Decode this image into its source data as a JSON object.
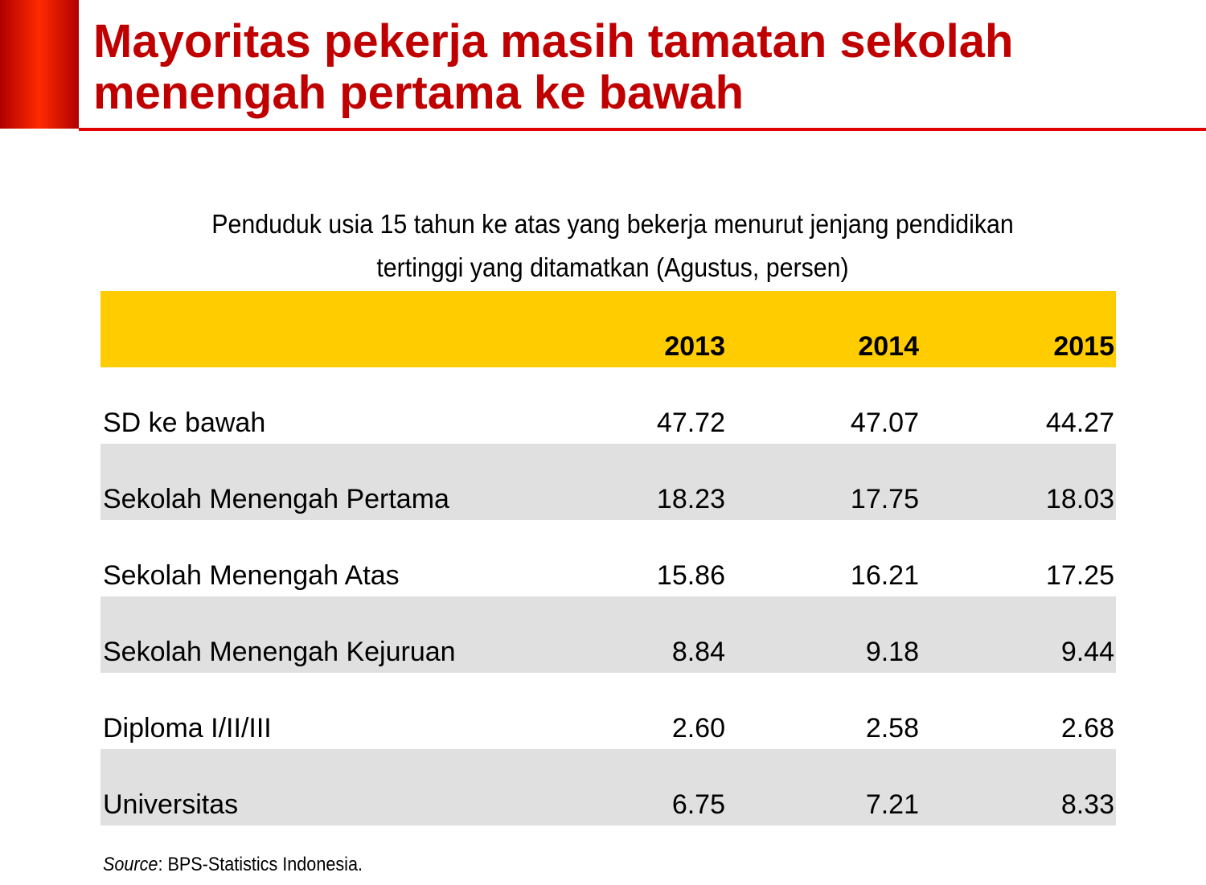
{
  "header": {
    "title_lines": [
      "Mayoritas pekerja masih tamatan sekolah",
      "menengah pertama ke bawah"
    ]
  },
  "subtitle_lines": [
    "Penduduk usia 15 tahun ke atas yang bekerja menurut jenjang pendidikan",
    "tertinggi yang ditamatkan (Agustus, persen)"
  ],
  "table": {
    "columns": [
      "2013",
      "2014",
      "2015"
    ],
    "rows": [
      [
        "SD ke bawah",
        "47.72",
        "47.07",
        "44.27"
      ],
      [
        "Sekolah Menengah Pertama",
        "18.23",
        "17.75",
        "18.03"
      ],
      [
        "Sekolah Menengah Atas",
        "15.86",
        "16.21",
        "17.25"
      ],
      [
        "Sekolah Menengah Kejuruan",
        "8.84",
        "9.18",
        "9.44"
      ],
      [
        "Diploma I/II/III",
        "2.60",
        "2.58",
        "2.68"
      ],
      [
        "Universitas",
        "6.75",
        "7.21",
        "8.33"
      ]
    ]
  },
  "source": {
    "label": "Source",
    "text": ": BPS-Statistics Indonesia."
  }
}
